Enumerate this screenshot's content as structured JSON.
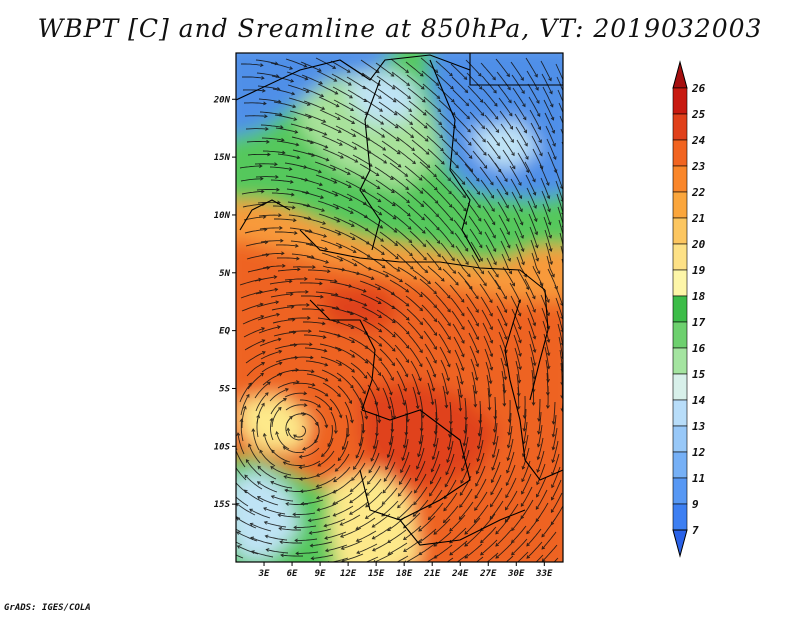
{
  "title": "WBPT [C] and Sreamline at 850hPa, VT: 2019032003",
  "footer": "GrADS: IGES/COLA",
  "map": {
    "lat_labels": [
      "20N",
      "15N",
      "10N",
      "5N",
      "EQ",
      "5S",
      "10S",
      "15S"
    ],
    "lon_labels": [
      "3E",
      "6E",
      "9E",
      "12E",
      "15E",
      "18E",
      "21E",
      "24E",
      "27E",
      "30E",
      "33E"
    ],
    "lat_range": [
      -20,
      24
    ],
    "lon_range": [
      0,
      35
    ]
  },
  "colorbar": {
    "levels": [
      "7",
      "9",
      "11",
      "12",
      "13",
      "14",
      "15",
      "16",
      "17",
      "18",
      "19",
      "20",
      "21",
      "22",
      "23",
      "24",
      "25",
      "26"
    ],
    "colors": [
      "#2a62e8",
      "#3d7ff2",
      "#5798f4",
      "#76b0f6",
      "#98c8f8",
      "#b8ddf9",
      "#d8f0ea",
      "#a4e4a0",
      "#6dd06e",
      "#3cbc48",
      "#fdf6a8",
      "#fde186",
      "#fcc660",
      "#fba63c",
      "#f9862a",
      "#f16420",
      "#e0401a",
      "#c81a10",
      "#a50f0f"
    ]
  },
  "colors": {
    "blue": "#4f8fe8",
    "light_blue": "#bfe3f5",
    "green": "#55c85c",
    "light_green": "#a8e29a",
    "yellow": "#fde98a",
    "orange": "#f89a3a",
    "red_orange": "#ee6424",
    "deep_red": "#e0421c"
  }
}
